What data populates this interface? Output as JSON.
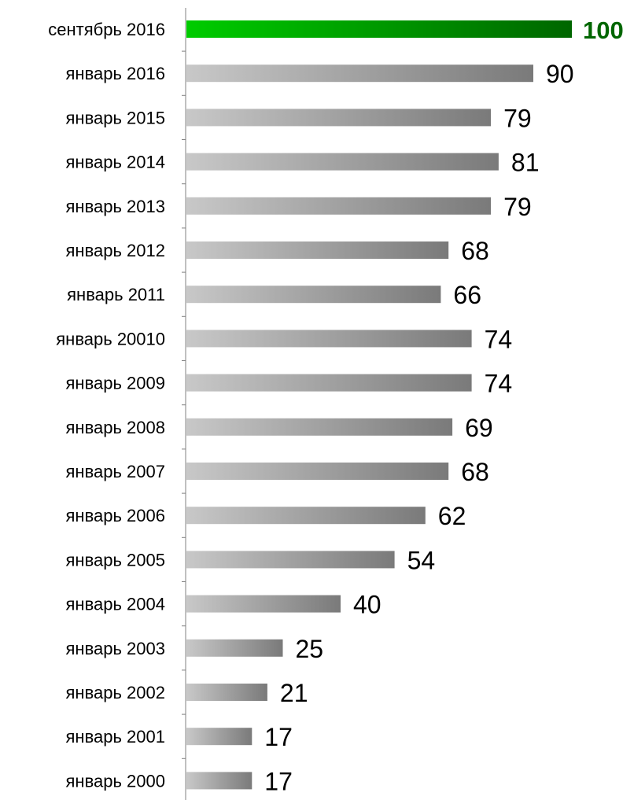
{
  "chart_data": {
    "type": "bar",
    "orientation": "horizontal",
    "categories": [
      "сентябрь 2016",
      "январь 2016",
      "январь 2015",
      "январь 2014",
      "январь 2013",
      "январь 2012",
      "январь 2011",
      "январь 20010",
      "январь 2009",
      "январь 2008",
      "январь 2007",
      "январь 2006",
      "январь 2005",
      "январь 2004",
      "январь 2003",
      "январь 2002",
      "январь 2001",
      "январь 2000"
    ],
    "values": [
      100,
      90,
      79,
      81,
      79,
      68,
      66,
      74,
      74,
      69,
      68,
      62,
      54,
      40,
      25,
      21,
      17,
      17
    ],
    "value_labels": [
      "100",
      "90",
      "79",
      "81",
      "79",
      "68",
      "66",
      "74",
      "74",
      "69",
      "68",
      "62",
      "54",
      "40",
      "25",
      "21",
      "17",
      "17"
    ],
    "highlight_index": 0,
    "xlim": [
      0,
      100
    ],
    "title": "",
    "xlabel": "",
    "ylabel": "",
    "grid": false,
    "legend": "none",
    "colors": {
      "highlight_start": "#00cc00",
      "highlight_end": "#006600",
      "highlight_label": "#006600",
      "bar_start": "#c8c8c8",
      "bar_end": "#7a7a7a",
      "axis": "#808080",
      "text": "#000000"
    }
  }
}
